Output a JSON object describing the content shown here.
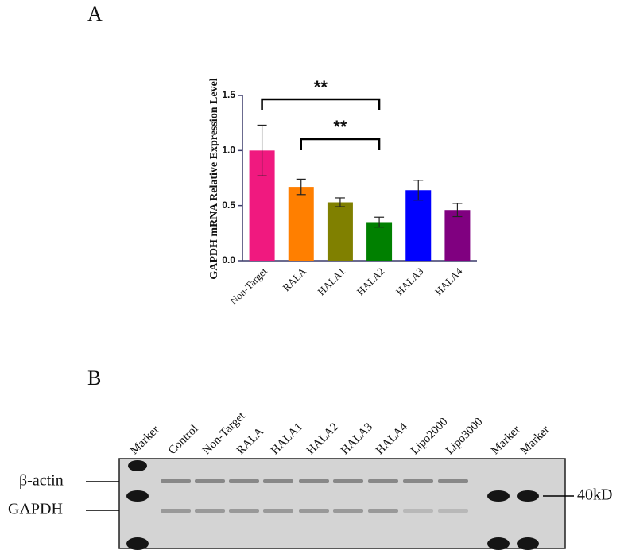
{
  "chart_data": {
    "type": "bar",
    "panel_label": "A",
    "ylabel": "GAPDH mRNA Relative Expression Level",
    "categories": [
      "Non-Target",
      "RALA",
      "HALA1",
      "HALA2",
      "HALA3",
      "HALA4"
    ],
    "values": [
      1.0,
      0.67,
      0.53,
      0.35,
      0.64,
      0.46
    ],
    "errors": [
      0.23,
      0.07,
      0.04,
      0.045,
      0.09,
      0.06
    ],
    "colors": [
      "#f0197f",
      "#ff7f00",
      "#808000",
      "#008000",
      "#0000ff",
      "#800080"
    ],
    "ylim": [
      0,
      1.5
    ],
    "yticks": [
      {
        "value": 0,
        "label": "0.0"
      },
      0.5,
      {
        "value": 1,
        "label": "1.0"
      },
      1.5
    ],
    "annotations": [
      {
        "text": "**",
        "between": [
          0,
          3
        ]
      },
      {
        "text": "**",
        "between": [
          1,
          3
        ]
      }
    ]
  },
  "blot": {
    "panel_label": "B",
    "lanes": [
      "Marker",
      "Control",
      "Non-Target",
      "RALA",
      "HALA1",
      "HALA2",
      "HALA3",
      "HALA4",
      "Lipo2000",
      "Lipo3000",
      "Marker",
      "Marker"
    ],
    "left_labels": [
      "β-actin",
      "GAPDH"
    ],
    "right_label": "40kD"
  }
}
